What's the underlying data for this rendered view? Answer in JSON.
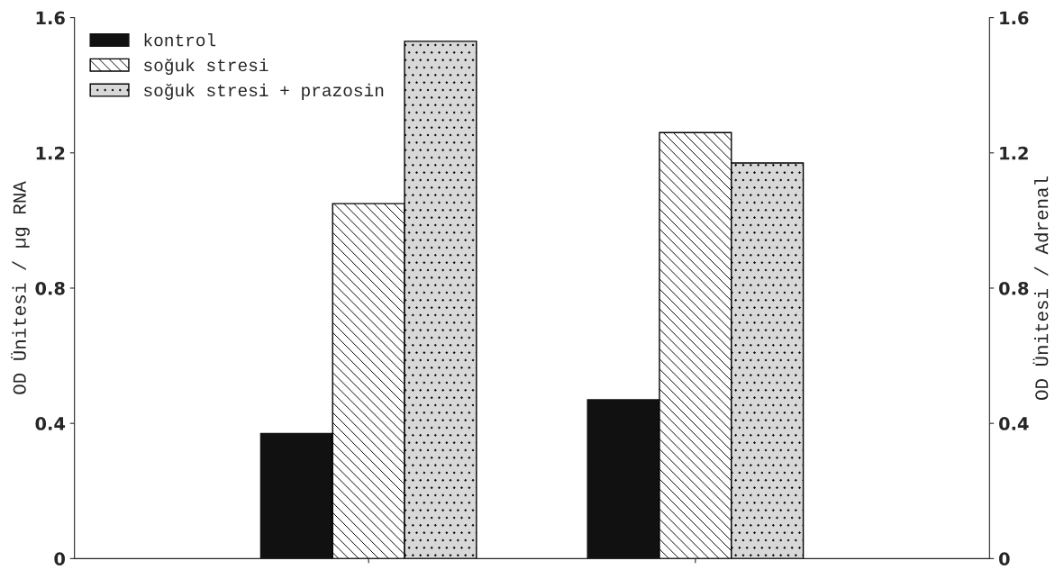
{
  "chart_data": {
    "type": "bar",
    "ylabel": "OD Ünitesi / µg RNA",
    "y2label": "OD Ünitesi / Adrenal",
    "categories": [
      null,
      null
    ],
    "series": [
      {
        "name": "kontrol",
        "color": "#111111",
        "values": [
          0.37,
          0.47
        ]
      },
      {
        "name": "soğuk stresi",
        "color": "#000000",
        "values": [
          1.05,
          1.26
        ]
      },
      {
        "name": "soğuk stresi + prazosin",
        "color": "#000000",
        "values": [
          1.53,
          1.17
        ]
      }
    ],
    "ylim": [
      0,
      1.6
    ],
    "yticks": [
      0,
      0.4,
      0.8,
      1.2,
      1.6
    ],
    "y2lim": [
      0,
      1.6
    ],
    "y2ticks": [
      0,
      0.4,
      0.8,
      1.2,
      1.6
    ],
    "grid": false,
    "legend": "top left"
  }
}
